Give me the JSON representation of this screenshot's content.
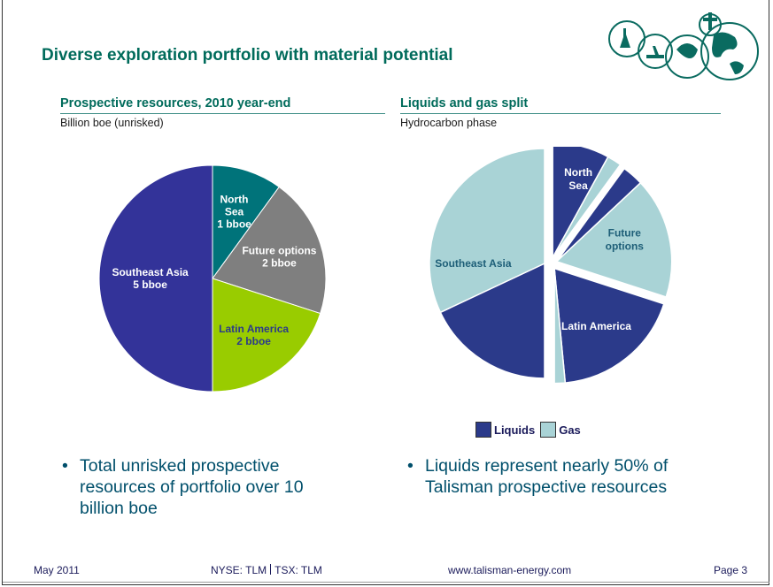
{
  "slide": {
    "title": "Diverse exploration portfolio with material potential"
  },
  "left_panel": {
    "title": "Prospective resources, 2010 year-end",
    "subtitle": "Billion boe (unrisked)"
  },
  "right_panel": {
    "title": "Liquids and gas split",
    "subtitle": "Hydrocarbon phase"
  },
  "chart_data": [
    {
      "type": "pie",
      "title": "Prospective resources, 2010 year-end",
      "subtitle": "Billion boe (unrisked)",
      "unit": "bboe",
      "slices": [
        {
          "label": "North Sea",
          "value_label": "1 bboe",
          "value": 1,
          "color": "#00737a"
        },
        {
          "label": "Future options",
          "value_label": "2 bboe",
          "value": 2,
          "color": "#7f7f7f"
        },
        {
          "label": "Latin America",
          "value_label": "2 bboe",
          "value": 2,
          "color": "#99cc00"
        },
        {
          "label": "Southeast Asia",
          "value_label": "5 bboe",
          "value": 5,
          "color": "#333399"
        }
      ]
    },
    {
      "type": "pie",
      "title": "Liquids and gas split",
      "subtitle": "Hydrocarbon phase",
      "legend": [
        {
          "name": "Liquids",
          "color": "#2b3a8a"
        },
        {
          "name": "Gas",
          "color": "#a9d3d6"
        }
      ],
      "regions": [
        {
          "label": "North Sea",
          "liquids": 0.8,
          "gas": 0.2
        },
        {
          "label": "Future options",
          "liquids": 0.3,
          "gas": 1.7
        },
        {
          "label": "Latin America",
          "liquids": 1.85,
          "gas": 0.15
        },
        {
          "label": "Southeast Asia",
          "liquids": 1.8,
          "gas": 3.2
        }
      ]
    }
  ],
  "bullets": {
    "left": "Total unrisked prospective resources of portfolio over 10 billion boe",
    "right": "Liquids represent nearly 50% of Talisman prospective resources"
  },
  "footer": {
    "date": "May 2011",
    "ticker_nyse": "NYSE: TLM",
    "ticker_tsx": "TSX: TLM",
    "website": "www.talisman-energy.com",
    "page": "Page 3"
  },
  "colors": {
    "title_green": "#006b5b",
    "body_blue": "#004f6b"
  }
}
